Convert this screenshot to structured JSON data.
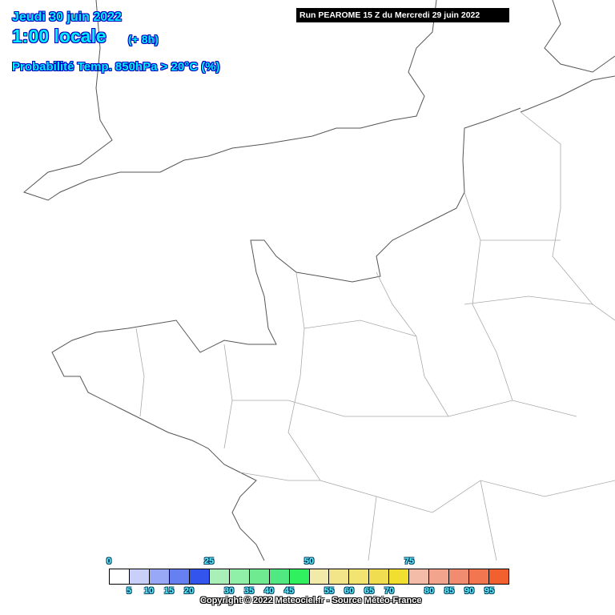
{
  "header": {
    "date": "Jeudi 30 juin 2022",
    "time": "1:00 locale",
    "lead": "(+ 8h)",
    "parameter": "Probabilité Temp. 850hPa > 20°C (%)",
    "run": "Run PEAROME 15 Z du Mercredi 29 juin 2022"
  },
  "legend": {
    "unit": "%",
    "top_labels": [
      "0",
      "25",
      "50",
      "75"
    ],
    "bottom_labels": [
      "5",
      "10",
      "15",
      "20",
      "30",
      "35",
      "40",
      "45",
      "55",
      "60",
      "65",
      "70",
      "80",
      "85",
      "90",
      "95"
    ],
    "colors": [
      "#ffffff",
      "#c8d0fa",
      "#98a8f6",
      "#6680f2",
      "#3355ee",
      "#a8f0b8",
      "#90f0a8",
      "#70ea90",
      "#50e880",
      "#30f060",
      "#f2eaa8",
      "#f2e488",
      "#f2e470",
      "#f0de50",
      "#f0de30",
      "#f2bca8",
      "#f2a48c",
      "#f28c70",
      "#f27650",
      "#f26030"
    ]
  },
  "footer": {
    "copyright": "Copyright © 2022 Meteociel.fr - Source Météo-France"
  }
}
